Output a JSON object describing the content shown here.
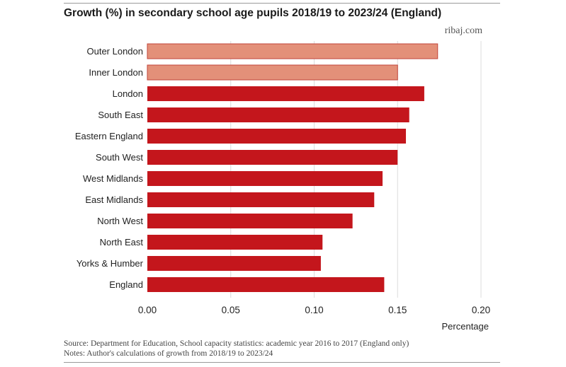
{
  "header": {
    "title": "Growth (%) in secondary school age pupils 2018/19 to 2023/24 (England)",
    "brand": "ribaj.com"
  },
  "footer": {
    "source": "Source: Department for Education, School capacity statistics: academic year 2016 to 2017 (England only)",
    "notes": "Notes: Author's calculations of growth from 2018/19 to 2023/24"
  },
  "chart_data": {
    "type": "bar",
    "orientation": "horizontal",
    "title": "Growth (%) in secondary school age pupils 2018/19 to 2023/24 (England)",
    "xlabel": "Percentage",
    "ylabel": "",
    "xlim": [
      0,
      0.2
    ],
    "xticks": [
      "0.00",
      "0.05",
      "0.10",
      "0.15",
      "0.20"
    ],
    "grid": "vertical",
    "legend": "none",
    "categories": [
      "Outer London",
      "Inner London",
      "London",
      "South East",
      "Eastern England",
      "South West",
      "West Midlands",
      "East Midlands",
      "North West",
      "North East",
      "Yorks & Humber",
      "England"
    ],
    "values": [
      0.174,
      0.15,
      0.166,
      0.157,
      0.155,
      0.15,
      0.141,
      0.136,
      0.123,
      0.105,
      0.104,
      0.142
    ],
    "colors": {
      "highlight": "#e39079",
      "highlight_edge": "#c2453a",
      "primary": "#c4161c",
      "highlight_categories": [
        "Outer London",
        "Inner London"
      ]
    }
  }
}
